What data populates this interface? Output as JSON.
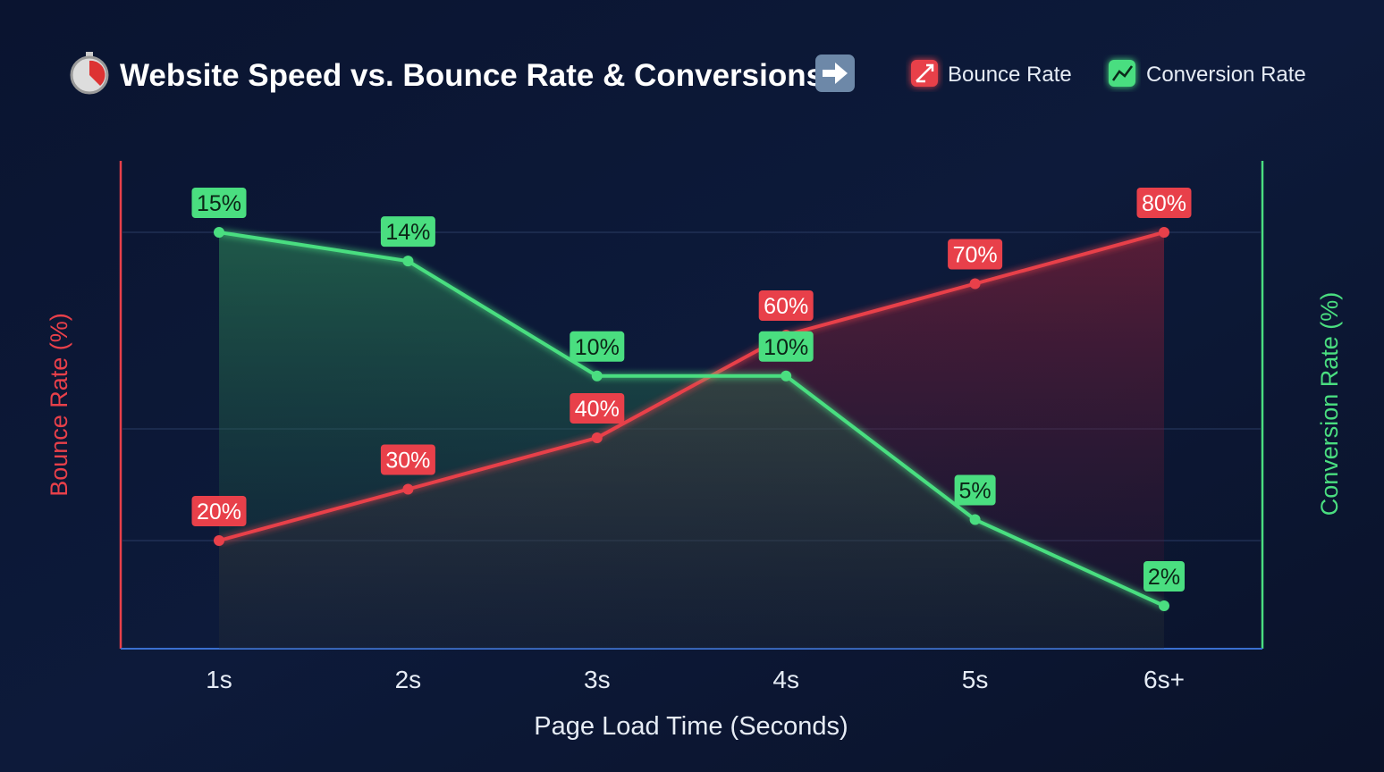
{
  "chart_data": {
    "type": "line",
    "title": "Website Speed vs. Bounce Rate & Conversions",
    "xlabel": "Page Load Time (Seconds)",
    "ylabel_left": "Bounce Rate (%)",
    "ylabel_right": "Conversion Rate (%)",
    "categories": [
      "1s",
      "2s",
      "3s",
      "4s",
      "5s",
      "6s+"
    ],
    "series": [
      {
        "name": "Bounce Rate",
        "axis": "left",
        "color": "#e8404a",
        "values": [
          20,
          30,
          40,
          60,
          70,
          80
        ],
        "labels": [
          "20%",
          "30%",
          "40%",
          "60%",
          "70%",
          "80%"
        ]
      },
      {
        "name": "Conversion Rate",
        "axis": "right",
        "color": "#4ade80",
        "values": [
          15,
          14,
          10,
          10,
          5,
          2
        ],
        "labels": [
          "15%",
          "14%",
          "10%",
          "10%",
          "5%",
          "2%"
        ]
      }
    ],
    "ylim_left": [
      0,
      100
    ],
    "ylim_right": [
      0,
      18
    ],
    "grid": true,
    "legend": "top-right"
  },
  "icons": {
    "title": "stopwatch-icon",
    "title_end": "right-arrow-icon",
    "bounce": "trend-up-icon",
    "conversion": "chart-up-icon"
  }
}
